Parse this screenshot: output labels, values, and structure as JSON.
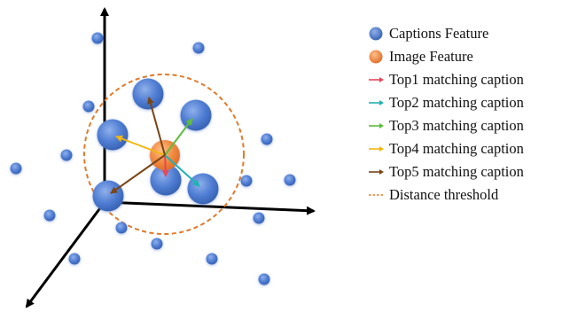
{
  "legend": {
    "items": [
      {
        "label": "Captions Feature",
        "marker": "circle",
        "color": "#4472c4"
      },
      {
        "label": "Image Feature",
        "marker": "circle",
        "color": "#ed7d31"
      },
      {
        "label": "Top1 matching caption",
        "marker": "arrow",
        "color": "#e8465a"
      },
      {
        "label": "Top2 matching caption",
        "marker": "arrow",
        "color": "#21b2b2"
      },
      {
        "label": "Top3 matching caption",
        "marker": "arrow",
        "color": "#5dbd3c"
      },
      {
        "label": "Top4 matching caption",
        "marker": "arrow",
        "color": "#f2b70f"
      },
      {
        "label": "Top5 matching caption",
        "marker": "arrow",
        "color": "#7a4515"
      },
      {
        "label": "Distance threshold",
        "marker": "dashed-line",
        "color": "#e07a2a"
      }
    ]
  },
  "colors": {
    "caption_feature": "#4472c4",
    "image_feature": "#ed7d31",
    "axis": "#000000",
    "threshold": "#e07a2a"
  }
}
